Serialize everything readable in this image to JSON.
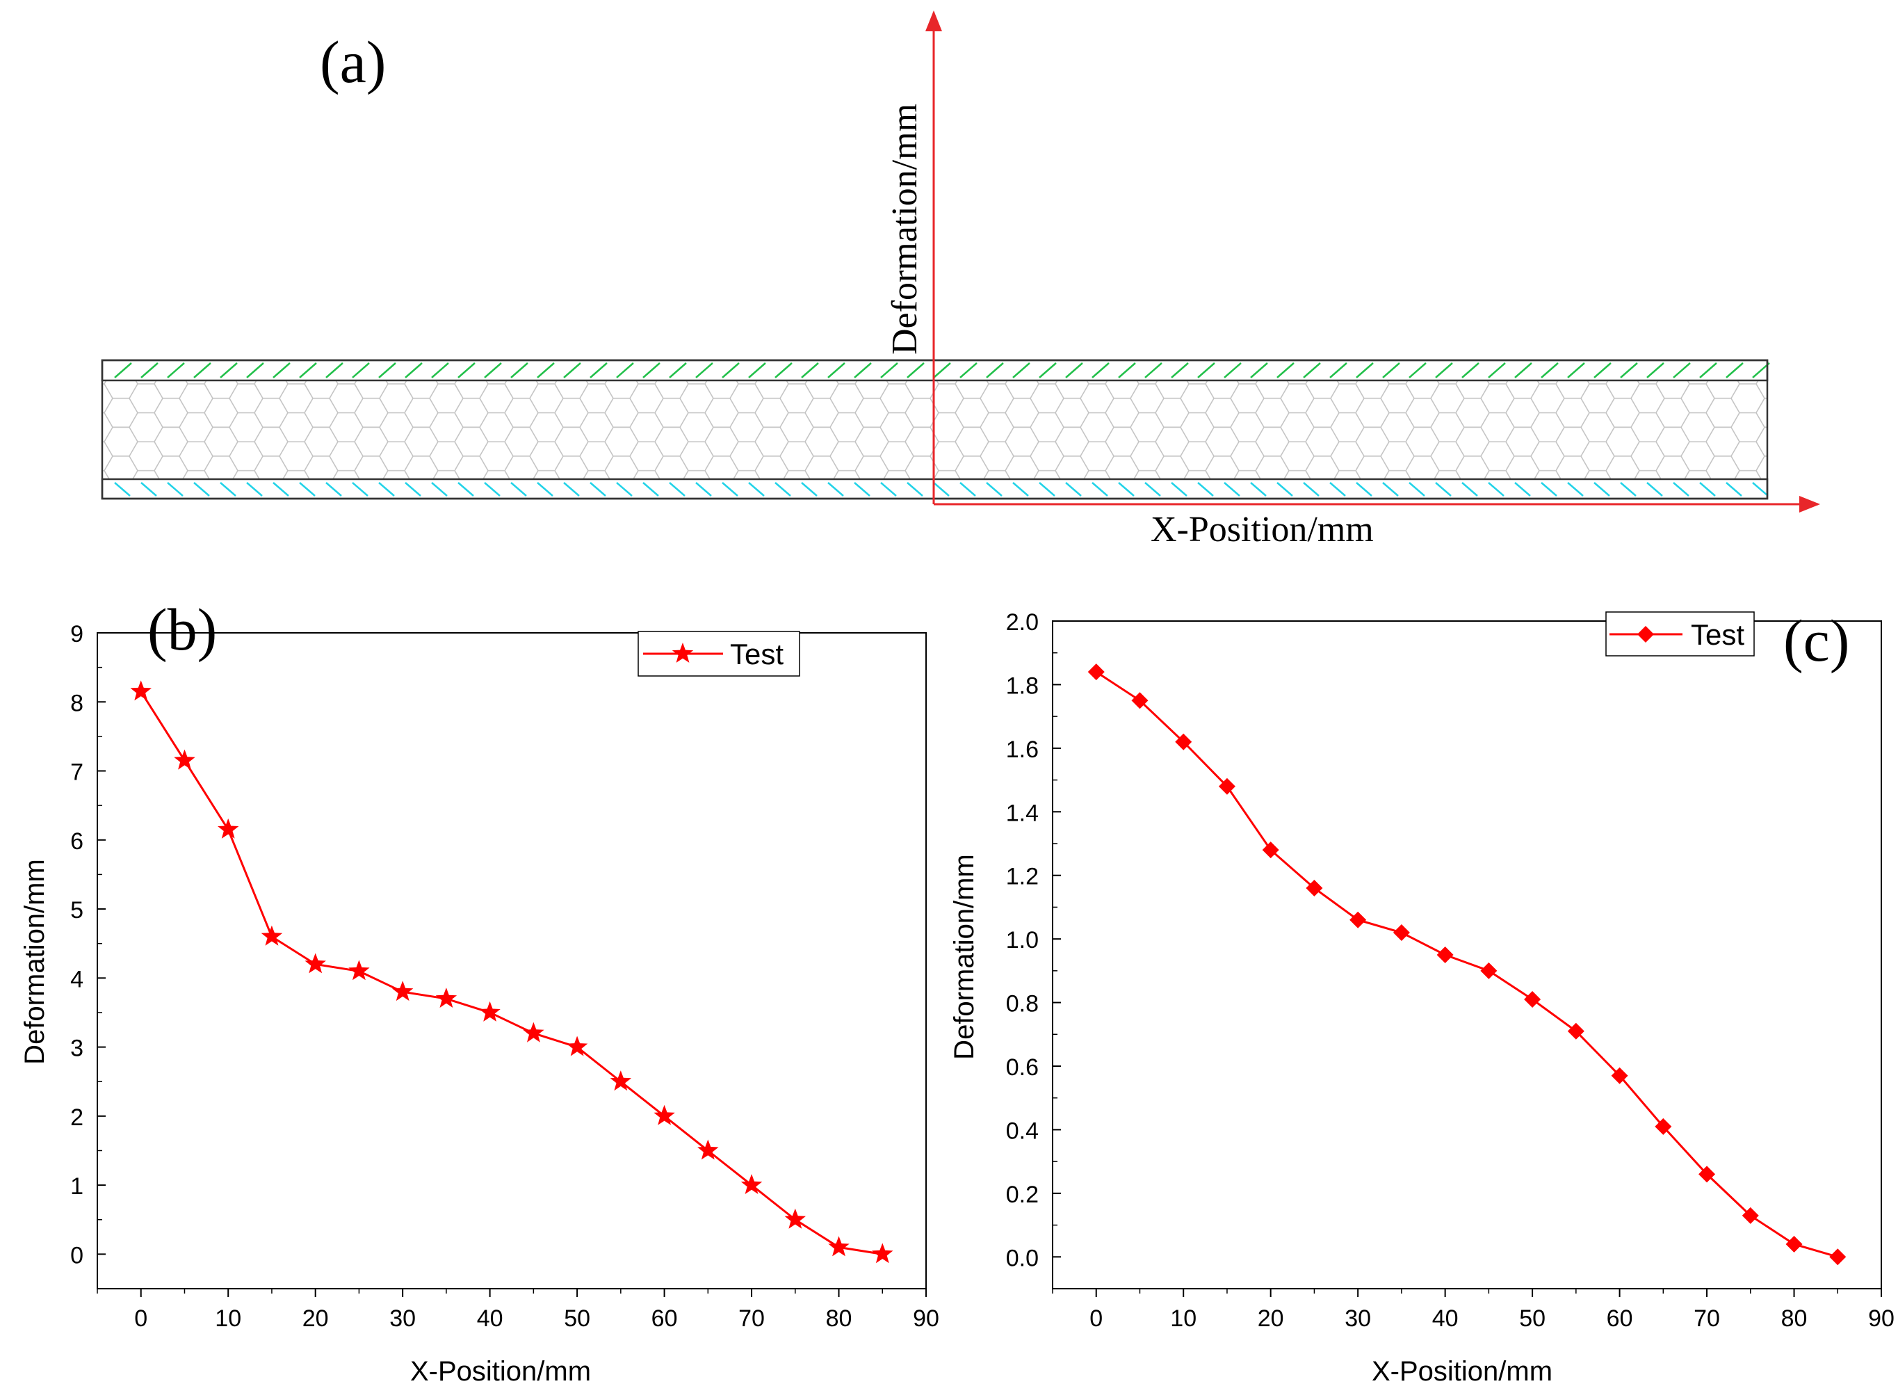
{
  "panel_a": {
    "label": "(a)",
    "y_axis_label": "Deformation/mm",
    "x_axis_label": "X-Position/mm",
    "colors": {
      "axis": "#e8262a",
      "top_hatch": "#22c04a",
      "bottom_hatch": "#22d3e8",
      "core": "#bdbdbd",
      "outline": "#333333"
    }
  },
  "chart_data": [
    {
      "type": "line",
      "panel_label": "(b)",
      "xlabel": "X-Position/mm",
      "ylabel": "Deformation/mm",
      "xlim": [
        -5,
        90
      ],
      "ylim": [
        -0.5,
        9
      ],
      "x_ticks": [
        0,
        10,
        20,
        30,
        40,
        50,
        60,
        70,
        80,
        90
      ],
      "y_ticks": [
        0,
        1,
        2,
        3,
        4,
        5,
        6,
        7,
        8,
        9
      ],
      "marker": "star",
      "color": "#ff0000",
      "legend_position": "top-right",
      "series": [
        {
          "name": "Test",
          "x": [
            0,
            5,
            10,
            15,
            20,
            25,
            30,
            35,
            40,
            45,
            50,
            55,
            60,
            65,
            70,
            75,
            80,
            85
          ],
          "y": [
            8.15,
            7.15,
            6.15,
            4.6,
            4.2,
            4.1,
            3.8,
            3.7,
            3.5,
            3.2,
            3.0,
            2.5,
            2.0,
            1.5,
            1.0,
            0.5,
            0.1,
            0.0
          ]
        }
      ]
    },
    {
      "type": "line",
      "panel_label": "(c)",
      "xlabel": "X-Position/mm",
      "ylabel": "Deformation/mm",
      "xlim": [
        -5,
        90
      ],
      "ylim": [
        -0.1,
        2.0
      ],
      "x_ticks": [
        0,
        10,
        20,
        30,
        40,
        50,
        60,
        70,
        80,
        90
      ],
      "y_ticks": [
        "0.0",
        "0.2",
        "0.4",
        "0.6",
        "0.8",
        "1.0",
        "1.2",
        "1.4",
        "1.6",
        "1.8",
        "2.0"
      ],
      "marker": "diamond",
      "color": "#ff0000",
      "legend_position": "top-right",
      "series": [
        {
          "name": "Test",
          "x": [
            0,
            5,
            10,
            15,
            20,
            25,
            30,
            35,
            40,
            45,
            50,
            55,
            60,
            65,
            70,
            75,
            80,
            85
          ],
          "y": [
            1.84,
            1.75,
            1.62,
            1.48,
            1.28,
            1.16,
            1.06,
            1.02,
            0.95,
            0.9,
            0.81,
            0.71,
            0.57,
            0.41,
            0.26,
            0.13,
            0.04,
            0.0
          ]
        }
      ]
    }
  ]
}
